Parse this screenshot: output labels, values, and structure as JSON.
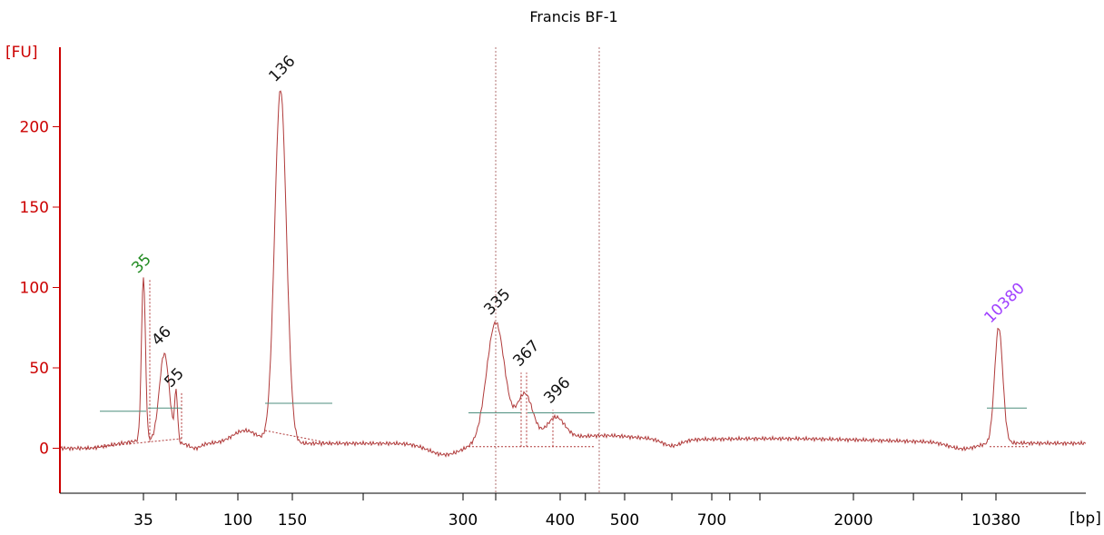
{
  "chart_data": {
    "type": "line",
    "title": "Francis BF-1",
    "ylabel": "[FU]",
    "xlabel": "[bp]",
    "ylim": [
      -25,
      245
    ],
    "y_ticks": [
      0,
      50,
      100,
      150,
      200
    ],
    "x_ticks": [
      "35",
      "100",
      "150",
      "300",
      "400",
      "500",
      "700",
      "2000",
      "10380"
    ],
    "grid": false,
    "legend": "none",
    "colors": {
      "axis": "#cc0000",
      "trace": "#b03a3a",
      "baseline": "#4f8f7f",
      "lower_marker": "#228b22",
      "upper_marker": "#a040ff",
      "peak_label": "#111111"
    },
    "peaks": [
      {
        "label": "35",
        "size_bp": 35,
        "fu": 105,
        "kind": "lower-marker"
      },
      {
        "label": "46",
        "size_bp": 46,
        "fu": 60,
        "kind": "sample"
      },
      {
        "label": "55",
        "size_bp": 55,
        "fu": 34,
        "kind": "sample"
      },
      {
        "label": "136",
        "size_bp": 136,
        "fu": 224,
        "kind": "sample"
      },
      {
        "label": "335",
        "size_bp": 335,
        "fu": 79,
        "kind": "sample"
      },
      {
        "label": "367",
        "size_bp": 367,
        "fu": 47,
        "kind": "sample"
      },
      {
        "label": "396",
        "size_bp": 396,
        "fu": 24,
        "kind": "sample"
      },
      {
        "label": "10380",
        "size_bp": 10380,
        "fu": 74,
        "kind": "upper-marker"
      }
    ],
    "region_markers_bp": [
      335,
      480
    ]
  }
}
